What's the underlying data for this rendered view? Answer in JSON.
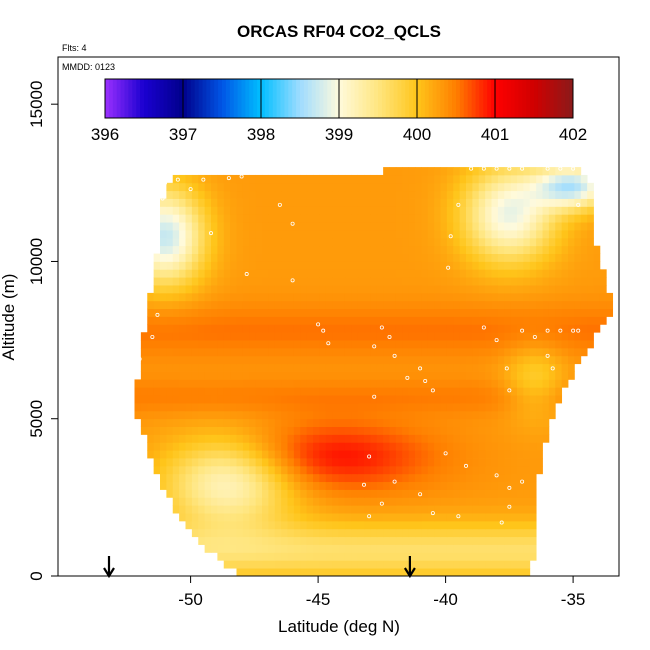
{
  "chart_data": {
    "type": "heatmap",
    "title": "ORCAS RF04 CO2_QCLS",
    "annotations": {
      "flights": "Flts: 4",
      "date": "MMDD: 0123"
    },
    "xlabel": "Latitude (deg N)",
    "ylabel": "Altitude (m)",
    "xlim": [
      -55.2,
      -33.2
    ],
    "ylim": [
      0,
      16500
    ],
    "x_ticks": [
      -50,
      -45,
      -40,
      -35
    ],
    "x_tick_labels": [
      "-50",
      "-45",
      "-40",
      "-35"
    ],
    "y_ticks": [
      0,
      5000,
      10000,
      15000
    ],
    "y_tick_labels": [
      "0",
      "5000",
      "10000",
      "15000"
    ],
    "colorbar": {
      "min": 396,
      "max": 402,
      "ticks": [
        396,
        397,
        398,
        399,
        400,
        401,
        402
      ],
      "tick_labels": [
        "396",
        "397",
        "398",
        "399",
        "400",
        "401",
        "402"
      ],
      "colors": [
        {
          "v": 396.0,
          "c": "#9b30ff"
        },
        {
          "v": 396.5,
          "c": "#1a00d0"
        },
        {
          "v": 397.0,
          "c": "#00008b"
        },
        {
          "v": 397.5,
          "c": "#0055e6"
        },
        {
          "v": 398.0,
          "c": "#00bfff"
        },
        {
          "v": 398.5,
          "c": "#9fdcff"
        },
        {
          "v": 399.0,
          "c": "#fffadc"
        },
        {
          "v": 399.5,
          "c": "#ffe680"
        },
        {
          "v": 400.0,
          "c": "#ffc51a"
        },
        {
          "v": 400.5,
          "c": "#ff7f00"
        },
        {
          "v": 401.0,
          "c": "#ff0000"
        },
        {
          "v": 401.5,
          "c": "#d00000"
        },
        {
          "v": 402.0,
          "c": "#8b1a1a"
        }
      ]
    },
    "domain": {
      "left": [
        [
          0,
          -48.1
        ],
        [
          1500,
          -50.2
        ],
        [
          3500,
          -51.5
        ],
        [
          5400,
          -52.2
        ],
        [
          6800,
          -52.0
        ],
        [
          9800,
          -51.4
        ],
        [
          12500,
          -51.0
        ]
      ],
      "right": [
        [
          0,
          -36.6
        ],
        [
          2000,
          -36.5
        ],
        [
          4000,
          -36.2
        ],
        [
          5500,
          -35.6
        ],
        [
          7000,
          -34.6
        ],
        [
          8500,
          -33.4
        ],
        [
          10500,
          -34.1
        ],
        [
          12500,
          -34.3
        ],
        [
          13000,
          -35.0
        ]
      ],
      "top": [
        [
          -51.0,
          12600
        ],
        [
          -49.4,
          12700
        ],
        [
          -48.0,
          12750
        ],
        [
          -46.0,
          12750
        ],
        [
          -44.0,
          12800
        ],
        [
          -41.0,
          12950
        ],
        [
          -39.0,
          13000
        ],
        [
          -37.0,
          12900
        ],
        [
          -35.0,
          12900
        ]
      ]
    },
    "value_structure": {
      "base": 400.3,
      "features": [
        {
          "kind": "cell",
          "lat": -44.5,
          "alt": 3800,
          "lat_spread": 4.0,
          "alt_spread": 1100,
          "delta": 0.65
        },
        {
          "kind": "band",
          "alt": 7800,
          "alt_spread": 900,
          "delta": 0.25
        },
        {
          "kind": "band",
          "alt": 5700,
          "alt_spread": 600,
          "delta": 0.2
        },
        {
          "kind": "cell",
          "lat": -48.5,
          "alt": 3000,
          "lat_spread": 2.5,
          "alt_spread": 1400,
          "delta": -1.2
        },
        {
          "kind": "cell",
          "lat": -51.0,
          "alt": 10800,
          "lat_spread": 1.5,
          "alt_spread": 1500,
          "delta": -1.6
        },
        {
          "kind": "cell",
          "lat": -37.5,
          "alt": 11500,
          "lat_spread": 1.8,
          "alt_spread": 1500,
          "delta": -1.4
        },
        {
          "kind": "cell",
          "lat": -35.0,
          "alt": 12400,
          "lat_spread": 1.5,
          "alt_spread": 700,
          "delta": -1.6
        },
        {
          "kind": "band",
          "alt": 800,
          "alt_spread": 900,
          "delta": -0.7
        },
        {
          "kind": "cell",
          "lat": -36.5,
          "alt": 6200,
          "lat_spread": 1.2,
          "alt_spread": 1200,
          "delta": -0.45
        }
      ]
    },
    "sample_points": [
      [
        -51.0,
        12500
      ],
      [
        -50.5,
        12600
      ],
      [
        -49.5,
        12600
      ],
      [
        -48.5,
        12650
      ],
      [
        -48.0,
        12700
      ],
      [
        -51.1,
        12000
      ],
      [
        -50.0,
        12300
      ],
      [
        -46.5,
        11800
      ],
      [
        -46.0,
        11200
      ],
      [
        -49.2,
        10900
      ],
      [
        -47.8,
        9600
      ],
      [
        -51.3,
        8300
      ],
      [
        -51.5,
        7600
      ],
      [
        -52.0,
        6900
      ],
      [
        -46.0,
        9400
      ],
      [
        -45.0,
        8000
      ],
      [
        -44.8,
        7800
      ],
      [
        -44.6,
        7400
      ],
      [
        -42.5,
        7900
      ],
      [
        -42.2,
        7600
      ],
      [
        -42.8,
        7300
      ],
      [
        -42.0,
        7000
      ],
      [
        -41.0,
        6600
      ],
      [
        -40.8,
        6200
      ],
      [
        -40.5,
        5900
      ],
      [
        -39.5,
        11800
      ],
      [
        -39.8,
        10800
      ],
      [
        -39.9,
        9800
      ],
      [
        -38.5,
        7900
      ],
      [
        -38.0,
        7500
      ],
      [
        -37.6,
        6600
      ],
      [
        -37.5,
        5900
      ],
      [
        -37.0,
        7800
      ],
      [
        -36.5,
        7600
      ],
      [
        -36.0,
        7800
      ],
      [
        -35.5,
        7800
      ],
      [
        -35.0,
        7800
      ],
      [
        -34.8,
        7800
      ],
      [
        -36.0,
        7000
      ],
      [
        -35.8,
        6600
      ],
      [
        -35.0,
        5900
      ],
      [
        -35.5,
        5300
      ],
      [
        -35.8,
        4300
      ],
      [
        -41.5,
        6300
      ],
      [
        -42.8,
        5700
      ],
      [
        -43.0,
        3800
      ],
      [
        -43.2,
        2900
      ],
      [
        -42.5,
        2300
      ],
      [
        -42.0,
        3000
      ],
      [
        -41.0,
        2600
      ],
      [
        -40.0,
        3900
      ],
      [
        -39.2,
        3500
      ],
      [
        -38.0,
        3200
      ],
      [
        -37.5,
        2800
      ],
      [
        -37.0,
        3000
      ],
      [
        -37.5,
        2200
      ],
      [
        -37.8,
        1700
      ],
      [
        -40.5,
        2000
      ],
      [
        -39.5,
        1900
      ],
      [
        -43.0,
        1900
      ],
      [
        -39.0,
        12950
      ],
      [
        -38.5,
        12950
      ],
      [
        -38.0,
        12950
      ],
      [
        -37.5,
        12950
      ],
      [
        -37.0,
        12950
      ],
      [
        -36.0,
        12950
      ],
      [
        -35.5,
        12950
      ],
      [
        -35.0,
        12950
      ],
      [
        -34.8,
        11800
      ]
    ],
    "markers": [
      {
        "symbol": "down-arrow",
        "lat": -53.2
      },
      {
        "symbol": "down-arrow",
        "lat": -41.4
      }
    ]
  }
}
